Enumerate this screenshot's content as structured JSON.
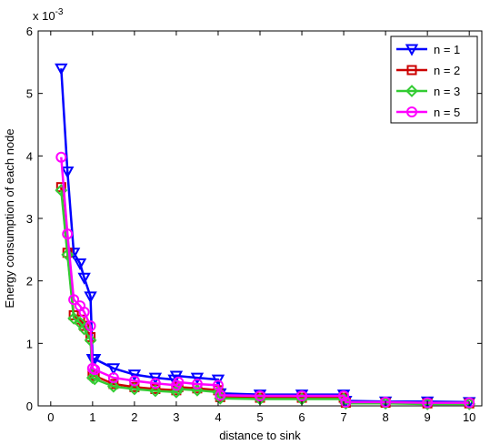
{
  "chart_data": {
    "type": "line",
    "title": "",
    "xlabel": "distance to sink",
    "ylabel": "Energy consumption of each node",
    "exponent_label": "x 10",
    "exponent_power": "-3",
    "xlim": [
      -0.3,
      10.3
    ],
    "ylim": [
      0,
      6
    ],
    "xticks": [
      "0",
      "1",
      "2",
      "3",
      "4",
      "5",
      "6",
      "7",
      "8",
      "9",
      "10"
    ],
    "yticks": [
      "0",
      "1",
      "2",
      "3",
      "4",
      "5",
      "6"
    ],
    "grid": false,
    "legend_position": "top-right",
    "series": [
      {
        "name": "n = 1",
        "color": "#0000ff",
        "marker": "triangle-down",
        "x": [
          0.25,
          0.4,
          0.55,
          0.7,
          0.8,
          0.95,
          1.0,
          1.05,
          1.5,
          2.0,
          2.5,
          2.95,
          3.0,
          3.5,
          4.0,
          4.05,
          5.0,
          6.0,
          7.0,
          7.05,
          8.0,
          9.0,
          10.0
        ],
        "y": [
          5.4,
          3.75,
          2.45,
          2.28,
          2.05,
          1.75,
          0.75,
          0.75,
          0.6,
          0.5,
          0.45,
          0.42,
          0.48,
          0.45,
          0.42,
          0.2,
          0.18,
          0.18,
          0.18,
          0.08,
          0.07,
          0.07,
          0.06
        ]
      },
      {
        "name": "n = 2",
        "color": "#cc0000",
        "marker": "square",
        "x": [
          0.25,
          0.4,
          0.55,
          0.7,
          0.8,
          0.95,
          1.0,
          1.05,
          1.5,
          2.0,
          2.5,
          3.0,
          3.05,
          3.5,
          4.0,
          4.05,
          5.0,
          6.0,
          7.0,
          7.05,
          8.0,
          9.0,
          10.0
        ],
        "y": [
          3.5,
          2.45,
          1.45,
          1.38,
          1.28,
          1.1,
          0.5,
          0.48,
          0.35,
          0.3,
          0.27,
          0.25,
          0.3,
          0.28,
          0.25,
          0.14,
          0.13,
          0.13,
          0.13,
          0.05,
          0.05,
          0.04,
          0.04
        ]
      },
      {
        "name": "n = 3",
        "color": "#33cc33",
        "marker": "diamond",
        "x": [
          0.25,
          0.4,
          0.55,
          0.7,
          0.8,
          0.95,
          1.0,
          1.05,
          1.5,
          2.0,
          2.5,
          3.0,
          3.05,
          3.5,
          4.0,
          4.05,
          5.0,
          6.0,
          7.0,
          7.05,
          8.0,
          9.0,
          10.0
        ],
        "y": [
          3.45,
          2.42,
          1.4,
          1.33,
          1.23,
          1.05,
          0.45,
          0.43,
          0.31,
          0.27,
          0.24,
          0.22,
          0.27,
          0.25,
          0.22,
          0.12,
          0.11,
          0.11,
          0.11,
          0.04,
          0.04,
          0.03,
          0.03
        ]
      },
      {
        "name": "n = 5",
        "color": "#ff00ff",
        "marker": "circle",
        "x": [
          0.25,
          0.4,
          0.55,
          0.7,
          0.8,
          0.95,
          1.0,
          1.05,
          1.5,
          2.0,
          2.5,
          3.0,
          3.05,
          3.5,
          4.0,
          4.05,
          5.0,
          6.0,
          7.0,
          7.05,
          8.0,
          9.0,
          10.0
        ],
        "y": [
          3.98,
          2.75,
          1.7,
          1.6,
          1.5,
          1.28,
          0.6,
          0.58,
          0.45,
          0.4,
          0.36,
          0.33,
          0.38,
          0.35,
          0.33,
          0.17,
          0.16,
          0.16,
          0.16,
          0.06,
          0.06,
          0.05,
          0.05
        ]
      }
    ]
  }
}
